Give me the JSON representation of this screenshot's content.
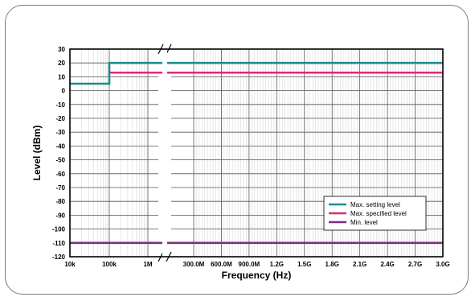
{
  "chart_data": {
    "type": "line",
    "title": "",
    "xlabel": "Frequency (Hz)",
    "ylabel": "Level (dBm)",
    "ylim": [
      -120,
      30
    ],
    "y_ticks": [
      30,
      20,
      10,
      0,
      -10,
      -20,
      -30,
      -40,
      -50,
      -60,
      -70,
      -80,
      -90,
      -100,
      -110,
      -120
    ],
    "x_axis": "log scale 10k to 1M, axis break, then linear 300.0M to 3.0G",
    "x_tick_labels": [
      "10k",
      "100k",
      "1M",
      "300.0M",
      "600.0M",
      "900.0M",
      "1.2G",
      "1.5G",
      "1.8G",
      "2.1G",
      "2.4G",
      "2.7G",
      "3.0G"
    ],
    "grid": true,
    "legend_position": "bottom-right",
    "series": [
      {
        "name": "Max. setting level",
        "color": "#1e8c8c",
        "points": [
          [
            "10k",
            5
          ],
          [
            "100k",
            5
          ],
          [
            "100k",
            20
          ],
          [
            "3.0G",
            20
          ]
        ]
      },
      {
        "name": "Max. specified level",
        "color": "#e0287a",
        "points": [
          [
            "100k",
            13
          ],
          [
            "3.0G",
            13
          ]
        ]
      },
      {
        "name": "Min. level",
        "color": "#7b2d7e",
        "points": [
          [
            "10k",
            -110
          ],
          [
            "3.0G",
            -110
          ]
        ]
      }
    ]
  }
}
